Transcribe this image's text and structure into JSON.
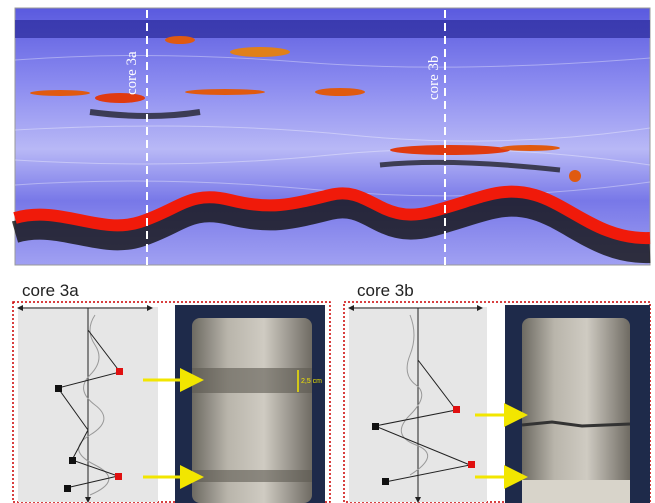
{
  "radargram": {
    "labels": [
      "core 3a",
      "core 3b"
    ]
  },
  "panels": [
    {
      "title": "core 3a",
      "scale_label": "2,5 cm"
    },
    {
      "title": "core 3b"
    }
  ]
}
